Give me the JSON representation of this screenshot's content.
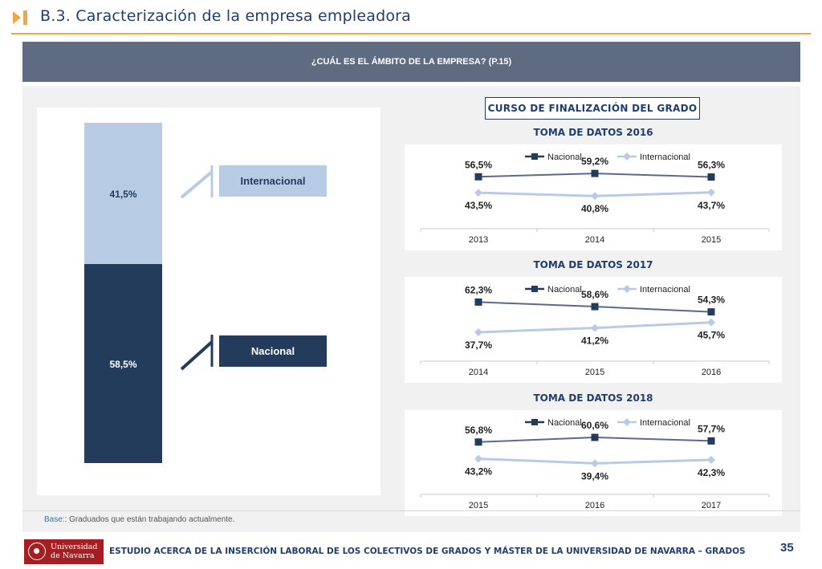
{
  "header": {
    "title": "B.3. Caracterización de la empresa empleadora",
    "accent_color": "#f0a646",
    "icon": "orange-bar-arrow-icon"
  },
  "banner": {
    "question": "¿CUÁL ES EL ÁMBITO DE LA EMPRESA? (P.15)"
  },
  "left_legend": {
    "international": "Internacional",
    "national": "Nacional"
  },
  "course_label": "CURSO DE FINALIZACIÓN DEL GRADO",
  "note": {
    "label": "Base:",
    "text": ": Graduados que están trabajando actualmente."
  },
  "footer": {
    "logo_line1": "Universidad",
    "logo_line2": "de Navarra",
    "text": "ESTUDIO ACERCA DE LA INSERCIÓN LABORAL DE LOS COLECTIVOS DE GRADOS Y MÁSTER DE LA UNIVERSIDAD DE NAVARRA – GRADOS",
    "page": "35"
  },
  "colors": {
    "nacional": "#243c5c",
    "internacional": "#b7cce4",
    "navy_text": "#1f3e6e"
  },
  "chart_data": [
    {
      "type": "bar",
      "stacked": true,
      "categories": [
        ""
      ],
      "series": [
        {
          "name": "Nacional",
          "values": [
            58.5
          ],
          "labels": [
            "58,5%"
          ]
        },
        {
          "name": "Internacional",
          "values": [
            41.5
          ],
          "labels": [
            "41,5%"
          ]
        }
      ],
      "ylim": [
        0,
        100
      ]
    },
    {
      "type": "line",
      "title": "TOMA DE DATOS 2016",
      "x": [
        "2013",
        "2014",
        "2015"
      ],
      "series": [
        {
          "name": "Nacional",
          "values": [
            56.5,
            59.2,
            56.3
          ],
          "labels": [
            "56,5%",
            "59,2%",
            "56,3%"
          ]
        },
        {
          "name": "Internacional",
          "values": [
            43.5,
            40.8,
            43.7
          ],
          "labels": [
            "43,5%",
            "40,8%",
            "43,7%"
          ]
        }
      ]
    },
    {
      "type": "line",
      "title": "TOMA DE DATOS 2017",
      "x": [
        "2014",
        "2015",
        "2016"
      ],
      "series": [
        {
          "name": "Nacional",
          "values": [
            62.3,
            58.6,
            54.3
          ],
          "labels": [
            "62,3%",
            "58,6%",
            "54,3%"
          ]
        },
        {
          "name": "Internacional",
          "values": [
            37.7,
            41.2,
            45.7
          ],
          "labels": [
            "37,7%",
            "41,2%",
            "45,7%"
          ]
        }
      ]
    },
    {
      "type": "line",
      "title": "TOMA DE DATOS 2018",
      "x": [
        "2015",
        "2016",
        "2017"
      ],
      "series": [
        {
          "name": "Nacional",
          "values": [
            56.8,
            60.6,
            57.7
          ],
          "labels": [
            "56,8%",
            "60,6%",
            "57,7%"
          ]
        },
        {
          "name": "Internacional",
          "values": [
            43.2,
            39.4,
            42.3
          ],
          "labels": [
            "43,2%",
            "39,4%",
            "42,3%"
          ]
        }
      ]
    }
  ]
}
